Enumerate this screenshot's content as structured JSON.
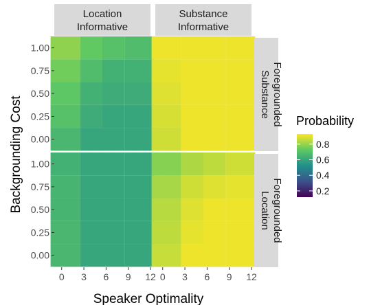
{
  "chart_data": {
    "type": "heatmap",
    "xlabel": "Speaker Optimality",
    "ylabel": "Backgrounding Cost",
    "x_ticks": [
      0,
      3,
      6,
      9,
      12
    ],
    "x_tick_labels": [
      "0",
      "3",
      "6",
      "9",
      "12"
    ],
    "x_cells": [
      0,
      3,
      6,
      9
    ],
    "xlim": [
      -1,
      12
    ],
    "y_ticks": [
      0,
      0.25,
      0.5,
      0.75,
      1
    ],
    "y_tick_labels": [
      "0.00",
      "0.25",
      "0.50",
      "0.75",
      "1.00"
    ],
    "y_cells": [
      0,
      0.25,
      0.5,
      0.75,
      1
    ],
    "ylim": [
      -0.13,
      1.11
    ],
    "col_facets": [
      {
        "line1": "Location",
        "line2": "Informative"
      },
      {
        "line1": "Substance",
        "line2": "Informative"
      }
    ],
    "row_facets": [
      {
        "line1": "Substance",
        "line2": "Foregrounded"
      },
      {
        "line1": "Location",
        "line2": "Foregrounded"
      }
    ],
    "legend": {
      "title": "Probability",
      "position": "right",
      "breaks": [
        0.8,
        0.6,
        0.4,
        0.2
      ],
      "break_labels": [
        "0.8",
        "0.6",
        "0.4",
        "0.2"
      ],
      "range": [
        0.12,
        0.93
      ]
    },
    "grid": true,
    "panels": [
      {
        "row": 0,
        "col": 0,
        "values": [
          [
            0.66,
            0.6,
            0.6,
            0.6
          ],
          [
            0.7,
            0.62,
            0.6,
            0.6
          ],
          [
            0.72,
            0.64,
            0.62,
            0.62
          ],
          [
            0.75,
            0.68,
            0.64,
            0.64
          ],
          [
            0.79,
            0.73,
            0.7,
            0.68
          ]
        ]
      },
      {
        "row": 0,
        "col": 1,
        "values": [
          [
            0.87,
            0.91,
            0.91,
            0.91
          ],
          [
            0.88,
            0.91,
            0.91,
            0.91
          ],
          [
            0.89,
            0.91,
            0.91,
            0.91
          ],
          [
            0.9,
            0.91,
            0.91,
            0.91
          ],
          [
            0.91,
            0.91,
            0.91,
            0.91
          ]
        ]
      },
      {
        "row": 1,
        "col": 0,
        "values": [
          [
            0.66,
            0.6,
            0.6,
            0.6
          ],
          [
            0.66,
            0.6,
            0.6,
            0.6
          ],
          [
            0.65,
            0.6,
            0.6,
            0.6
          ],
          [
            0.65,
            0.6,
            0.6,
            0.6
          ],
          [
            0.64,
            0.6,
            0.6,
            0.6
          ]
        ]
      },
      {
        "row": 1,
        "col": 1,
        "values": [
          [
            0.86,
            0.91,
            0.91,
            0.91
          ],
          [
            0.85,
            0.9,
            0.91,
            0.91
          ],
          [
            0.84,
            0.89,
            0.91,
            0.91
          ],
          [
            0.82,
            0.87,
            0.89,
            0.9
          ],
          [
            0.78,
            0.83,
            0.85,
            0.87
          ]
        ]
      }
    ]
  }
}
